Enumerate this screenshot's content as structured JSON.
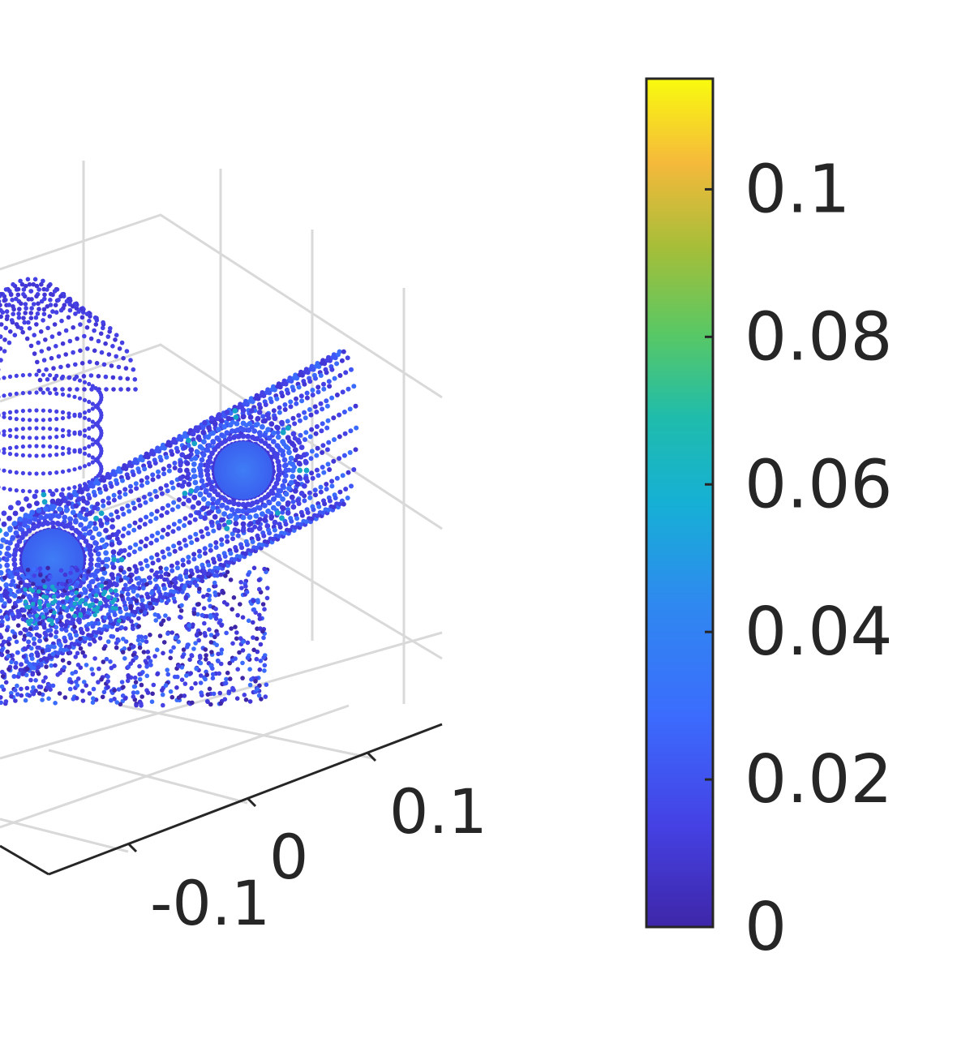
{
  "chart_data": {
    "type": "scatter",
    "dimensions": "3d",
    "title": "",
    "xlabel": "",
    "ylabel": "",
    "zlabel": "",
    "axis_ticks": {
      "horizontal_axis": [
        "-0.1",
        "0",
        "0.1"
      ]
    },
    "grid": true,
    "colormap": "parula",
    "colorbar": {
      "placement": "right",
      "range": [
        0,
        0.115
      ],
      "ticks": [
        0,
        0.02,
        0.04,
        0.06,
        0.08,
        0.1
      ],
      "tick_labels": [
        "0",
        "0.02",
        "0.04",
        "0.06",
        "0.08",
        "0.1"
      ]
    },
    "colors": {
      "parula_low": "#3e26a8",
      "parula_mid_low": "#2f88f0",
      "parula_mid": "#18b5c9",
      "parula_mid_high": "#95c83a",
      "parula_high": "#f9fb0e",
      "grid": "#d9d9d9",
      "axis": "#262626"
    }
  }
}
